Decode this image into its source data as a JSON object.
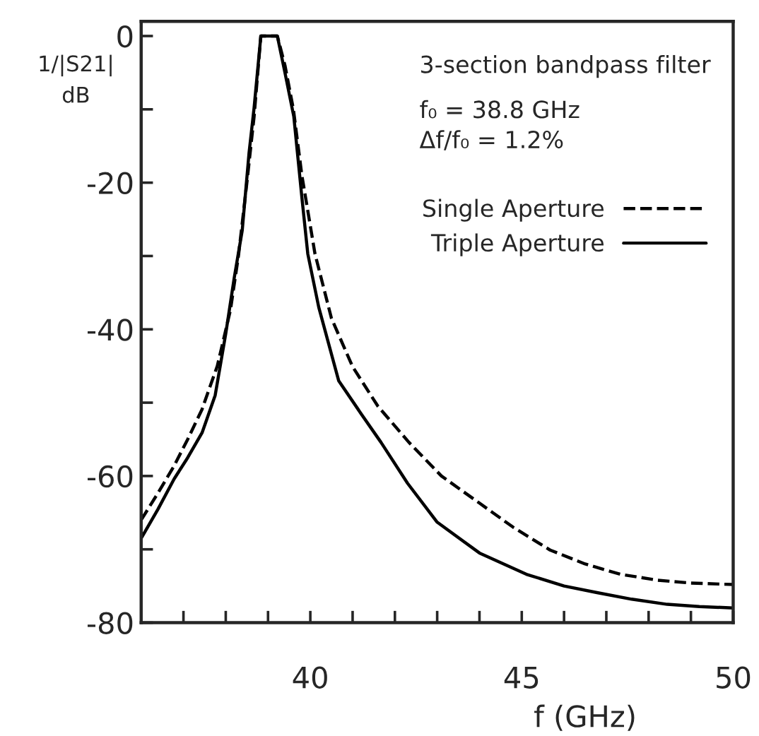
{
  "chart_data": {
    "type": "line",
    "xlabel": "f (GHz)",
    "ylabel": "1/|S21|\ndB",
    "annotations": [
      "3-section bandpass filter",
      "f₀ = 38.8 GHz",
      "Δf/f₀ = 1.2%"
    ],
    "xlim": [
      36,
      50
    ],
    "ylim": [
      -80,
      2
    ],
    "xticks": [
      {
        "value": 37,
        "label": null
      },
      {
        "value": 38,
        "label": null
      },
      {
        "value": 39,
        "label": null
      },
      40,
      {
        "value": 41,
        "label": null
      },
      {
        "value": 42,
        "label": null
      },
      {
        "value": 43,
        "label": null
      },
      {
        "value": 44,
        "label": null
      },
      45,
      {
        "value": 46,
        "label": null
      },
      {
        "value": 47,
        "label": null
      },
      {
        "value": 48,
        "label": null
      },
      {
        "value": 49,
        "label": null
      },
      50
    ],
    "yticks": [
      -80,
      {
        "value": -70,
        "label": null
      },
      -60,
      {
        "value": -50,
        "label": null
      },
      -40,
      {
        "value": -30,
        "label": null
      },
      -20,
      {
        "value": -10,
        "label": null
      },
      0
    ],
    "grid": false,
    "legend": "top right",
    "marker": "none",
    "series": [
      {
        "name": "Single Aperture",
        "color": "#000000",
        "line_style": "dashed",
        "x": [
          36,
          36.4,
          36.78,
          37.1,
          37.44,
          37.8,
          38.11,
          38.3,
          38.5,
          38.67,
          38.83,
          39.22,
          39.4,
          39.6,
          39.8,
          40.11,
          40.5,
          41.0,
          41.6,
          42.33,
          43.1,
          44,
          44.8,
          45.67,
          46.5,
          47.33,
          48.2,
          49,
          50
        ],
        "values": [
          -66,
          -62.3,
          -58.6,
          -55,
          -50.9,
          -45,
          -37.4,
          -30,
          -20,
          -11,
          0,
          0,
          -4,
          -10,
          -19,
          -29.7,
          -38.5,
          -45.1,
          -50.5,
          -55.4,
          -60,
          -63.7,
          -67,
          -70.1,
          -72,
          -73.4,
          -74.2,
          -74.6,
          -74.8
        ]
      },
      {
        "name": "Triple Aperture",
        "color": "#000000",
        "line_style": "solid",
        "x": [
          36,
          36.4,
          36.78,
          37.1,
          37.44,
          37.75,
          38.0,
          38.2,
          38.39,
          38.55,
          38.67,
          38.83,
          39.22,
          39.4,
          39.61,
          39.8,
          39.94,
          40.2,
          40.67,
          41.2,
          41.67,
          42.3,
          43.0,
          44,
          45.11,
          46,
          46.78,
          47.6,
          48.44,
          49.2,
          50
        ],
        "values": [
          -68.5,
          -64.5,
          -60.4,
          -57.5,
          -54.1,
          -49,
          -40.6,
          -33,
          -26.5,
          -16,
          -9.8,
          0,
          0,
          -5,
          -11,
          -22,
          -29.7,
          -37,
          -47,
          -51.5,
          -55.4,
          -61,
          -66.3,
          -70.5,
          -73.4,
          -75,
          -75.9,
          -76.8,
          -77.5,
          -77.8,
          -78.0
        ]
      }
    ]
  }
}
